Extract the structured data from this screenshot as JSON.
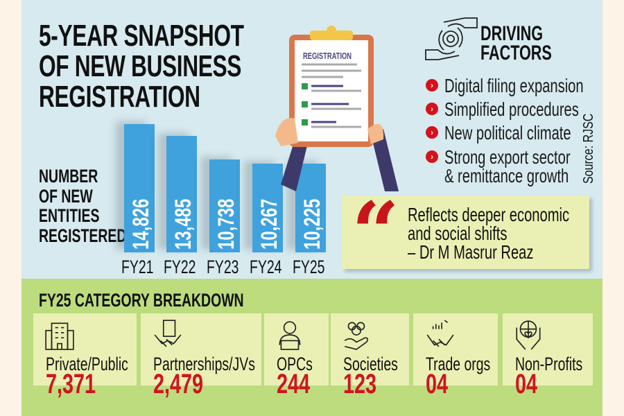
{
  "title_lines": [
    "5-YEAR SNAPSHOT",
    "OF NEW BUSINESS",
    "REGISTRATION"
  ],
  "y_label_lines": [
    "NUMBER",
    "OF NEW",
    "ENTITIES",
    "REGISTERED"
  ],
  "clipboard_label": "REGISTRATION",
  "driving_factors": {
    "title_lines": [
      "DRIVING",
      "FACTORS"
    ],
    "items": [
      "Digital filing expansion",
      "Simplified procedures",
      "New political climate",
      "Strong export sector",
      "& remittance growth"
    ]
  },
  "source": "Source: RJSC",
  "quote": {
    "lines": [
      "Reflects deeper economic",
      "and social shifts"
    ],
    "author": "– Dr M Masrur Reaz"
  },
  "breakdown": {
    "title": "FY25 CATEGORY BREAKDOWN",
    "cards": [
      {
        "label": "Private/Public",
        "value": "7,371",
        "icon": "office-building-icon"
      },
      {
        "label": "Partnerships/JVs",
        "value": "2,479",
        "icon": "handshake-document-icon"
      },
      {
        "label": "OPCs",
        "value": "244",
        "icon": "person-laptop-icon"
      },
      {
        "label": "Societies",
        "value": "123",
        "icon": "group-hand-icon"
      },
      {
        "label": "Trade orgs",
        "value": "04",
        "icon": "trade-handshake-icon"
      },
      {
        "label": "Non-Profits",
        "value": "04",
        "icon": "hands-globe-heart-icon"
      }
    ]
  },
  "colors": {
    "bar": "#3fa2dd",
    "accent": "#d0141e",
    "panel": "#d7eaef",
    "green": "#bcdc7e"
  },
  "chart_data": {
    "type": "bar",
    "title": "5-YEAR SNAPSHOT OF NEW BUSINESS REGISTRATION",
    "ylabel": "NUMBER OF NEW ENTITIES REGISTERED",
    "xlabel": "",
    "categories": [
      "FY21",
      "FY22",
      "FY23",
      "FY24",
      "FY25"
    ],
    "values": [
      14826,
      13485,
      10738,
      10267,
      10225
    ],
    "value_labels": [
      "14,826",
      "13,485",
      "10,738",
      "10,267",
      "10,225"
    ],
    "ylim": [
      0,
      14826
    ]
  }
}
